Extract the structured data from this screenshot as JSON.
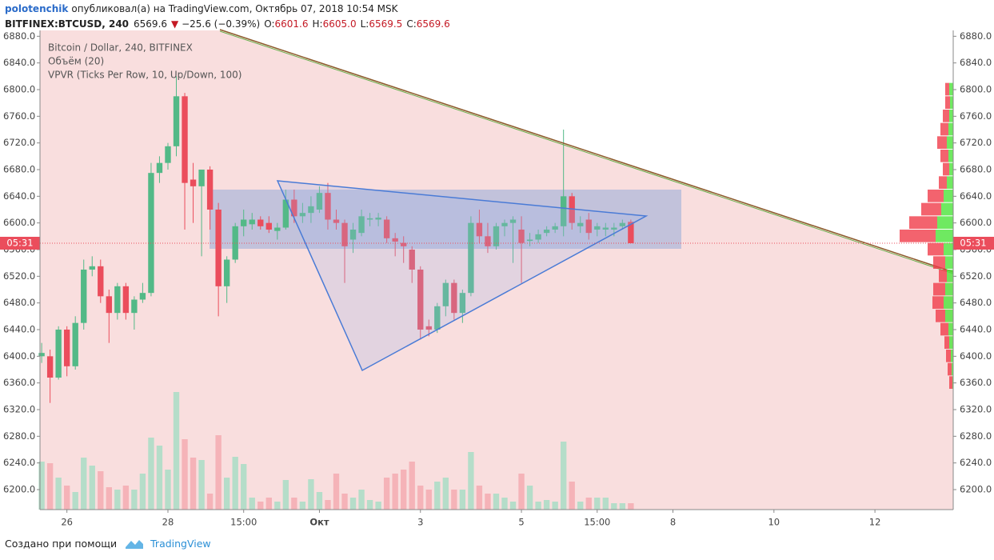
{
  "header": {
    "user": "polotenchik",
    "published": "опубликовал(а) на TradingView.com, Октябрь 07, 2018 10:54 MSK",
    "symbol": "BITFINEX:BTCUSD, 240",
    "last": "6569.6",
    "arrow": "▼",
    "change": "−25.6 (−0.39%)",
    "o_label": "O:",
    "o": "6601.6",
    "h_label": "H:",
    "h": "6605.0",
    "l_label": "L:",
    "l": "6569.5",
    "c_label": "C:",
    "c": "6569.6"
  },
  "chart_data": {
    "type": "candlestick",
    "legend": [
      "Bitcoin / Dollar, 240, BITFINEX",
      "Объём (20)",
      "VPVR (Ticks Per Row, 10, Up/Down, 100)"
    ],
    "up_color": "#53b987",
    "down_color": "#eb4d5c",
    "volume_up_color": "#b5ddc9",
    "volume_down_color": "#f5b3b8",
    "open": [
      6400,
      6400,
      6368,
      6440,
      6385,
      6450,
      6530,
      6535,
      6490,
      6465,
      6505,
      6465,
      6485,
      6495,
      6675,
      6690,
      6715,
      6790,
      6665,
      6655,
      6680,
      6620,
      6505,
      6545,
      6595,
      6598,
      6605,
      6600,
      6588,
      6593,
      6635,
      6610,
      6615,
      6620,
      6645,
      6605,
      6600,
      6575,
      6585,
      6605,
      6605,
      6605,
      6577,
      6570,
      6560,
      6530,
      6445,
      6440,
      6475,
      6510,
      6465,
      6495,
      6600,
      6580,
      6565,
      6595,
      6600,
      6590,
      6573,
      6575,
      6585,
      6590,
      6595,
      6640,
      6595,
      6605,
      6590,
      6590,
      6590,
      6595,
      6601.6
    ],
    "high": [
      6420,
      6410,
      6445,
      6445,
      6460,
      6545,
      6550,
      6545,
      6500,
      6510,
      6510,
      6490,
      6510,
      6690,
      6700,
      6720,
      6820,
      6795,
      6690,
      6680,
      6685,
      6630,
      6550,
      6600,
      6620,
      6615,
      6610,
      6610,
      6600,
      6650,
      6650,
      6630,
      6640,
      6655,
      6660,
      6620,
      6605,
      6600,
      6620,
      6615,
      6615,
      6610,
      6585,
      6580,
      6565,
      6535,
      6455,
      6480,
      6515,
      6515,
      6500,
      6610,
      6620,
      6600,
      6600,
      6605,
      6610,
      6610,
      6585,
      6590,
      6595,
      6600,
      6740,
      6645,
      6610,
      6615,
      6600,
      6600,
      6600,
      6605,
      6605
    ],
    "low": [
      6390,
      6330,
      6365,
      6370,
      6380,
      6440,
      6520,
      6480,
      6420,
      6455,
      6455,
      6440,
      6480,
      6490,
      6660,
      6680,
      6700,
      6590,
      6600,
      6550,
      6590,
      6460,
      6480,
      6540,
      6580,
      6590,
      6590,
      6585,
      6575,
      6590,
      6600,
      6600,
      6600,
      6615,
      6590,
      6590,
      6510,
      6555,
      6580,
      6595,
      6595,
      6570,
      6550,
      6540,
      6510,
      6425,
      6430,
      6435,
      6460,
      6455,
      6450,
      6490,
      6570,
      6555,
      6560,
      6580,
      6540,
      6510,
      6565,
      6570,
      6580,
      6585,
      6580,
      6590,
      6585,
      6575,
      6580,
      6580,
      6580,
      6590,
      6569.5
    ],
    "close": [
      6405,
      6368,
      6440,
      6385,
      6450,
      6530,
      6535,
      6490,
      6465,
      6505,
      6465,
      6485,
      6495,
      6675,
      6690,
      6715,
      6790,
      6660,
      6655,
      6680,
      6620,
      6505,
      6545,
      6595,
      6605,
      6605,
      6595,
      6590,
      6593,
      6635,
      6610,
      6615,
      6625,
      6645,
      6605,
      6600,
      6565,
      6590,
      6610,
      6607,
      6608,
      6577,
      6572,
      6565,
      6530,
      6440,
      6440,
      6475,
      6510,
      6465,
      6495,
      6600,
      6580,
      6565,
      6595,
      6600,
      6605,
      6570,
      6575,
      6583,
      6590,
      6595,
      6640,
      6600,
      6600,
      6585,
      6595,
      6593,
      6593,
      6600,
      6569.6
    ],
    "volume": [
      60,
      58,
      40,
      30,
      22,
      65,
      55,
      48,
      28,
      25,
      30,
      25,
      45,
      90,
      80,
      50,
      147,
      88,
      65,
      62,
      20,
      93,
      40,
      66,
      57,
      15,
      10,
      15,
      10,
      37,
      15,
      10,
      38,
      22,
      12,
      45,
      20,
      15,
      25,
      12,
      10,
      40,
      45,
      50,
      60,
      30,
      25,
      35,
      40,
      25,
      25,
      72,
      30,
      20,
      20,
      15,
      10,
      45,
      30,
      10,
      12,
      10,
      85,
      35,
      10,
      15,
      15,
      15,
      8,
      8,
      8
    ],
    "volume_ylim": [
      0,
      200
    ],
    "ylim": [
      6170,
      6888.8
    ],
    "yticks": [
      {
        "value": 6200,
        "label": "6200.0"
      },
      {
        "value": 6240,
        "label": "6240.0"
      },
      {
        "value": 6280,
        "label": "6280.0"
      },
      {
        "value": 6320,
        "label": "6320.0"
      },
      {
        "value": 6360,
        "label": "6360.0"
      },
      {
        "value": 6400,
        "label": "6400.0"
      },
      {
        "value": 6440,
        "label": "6440.0"
      },
      {
        "value": 6480,
        "label": "6480.0"
      },
      {
        "value": 6520,
        "label": "6520.0"
      },
      {
        "value": 6560,
        "label": "6560.0"
      },
      {
        "value": 6600,
        "label": "6600.0"
      },
      {
        "value": 6640,
        "label": "6640.0"
      },
      {
        "value": 6680,
        "label": "6680.0"
      },
      {
        "value": 6720,
        "label": "6720.0"
      },
      {
        "value": 6760,
        "label": "6760.0"
      },
      {
        "value": 6800,
        "label": "6800.0"
      },
      {
        "value": 6840,
        "label": "6840.0"
      },
      {
        "value": 6880,
        "label": "6880.0"
      }
    ],
    "xlim": [
      -0.2,
      108.3
    ],
    "xticks": [
      {
        "value": 3,
        "label": "26"
      },
      {
        "value": 15,
        "label": "28"
      },
      {
        "value": 24,
        "label": "15:00"
      },
      {
        "value": 33,
        "label": "Окт"
      },
      {
        "value": 45,
        "label": "3"
      },
      {
        "value": 57,
        "label": "5"
      },
      {
        "value": 66,
        "label": "15:00"
      },
      {
        "value": 75,
        "label": "8"
      },
      {
        "value": 87,
        "label": "10"
      },
      {
        "value": 99,
        "label": "12"
      }
    ],
    "last": 6569.6,
    "countdown": "05:31",
    "vpvr": {
      "up_color": "#4be33a",
      "down_color": "#f03c4a",
      "prices": [
        6800,
        6780,
        6760,
        6740,
        6720,
        6700,
        6680,
        6660,
        6640,
        6620,
        6600,
        6580,
        6560,
        6540,
        6520,
        6500,
        6480,
        6460,
        6440,
        6420,
        6400,
        6380,
        6360
      ],
      "up": [
        5,
        4,
        5,
        6,
        8,
        6,
        5,
        8,
        12,
        15,
        20,
        22,
        12,
        10,
        8,
        10,
        12,
        10,
        6,
        5,
        3,
        2,
        1
      ],
      "down": [
        5,
        6,
        8,
        10,
        12,
        10,
        8,
        10,
        20,
        25,
        35,
        45,
        20,
        15,
        10,
        15,
        14,
        12,
        10,
        6,
        6,
        5,
        4
      ]
    }
  },
  "footer": {
    "created": "Создано при помощи",
    "brand": "TradingView"
  }
}
